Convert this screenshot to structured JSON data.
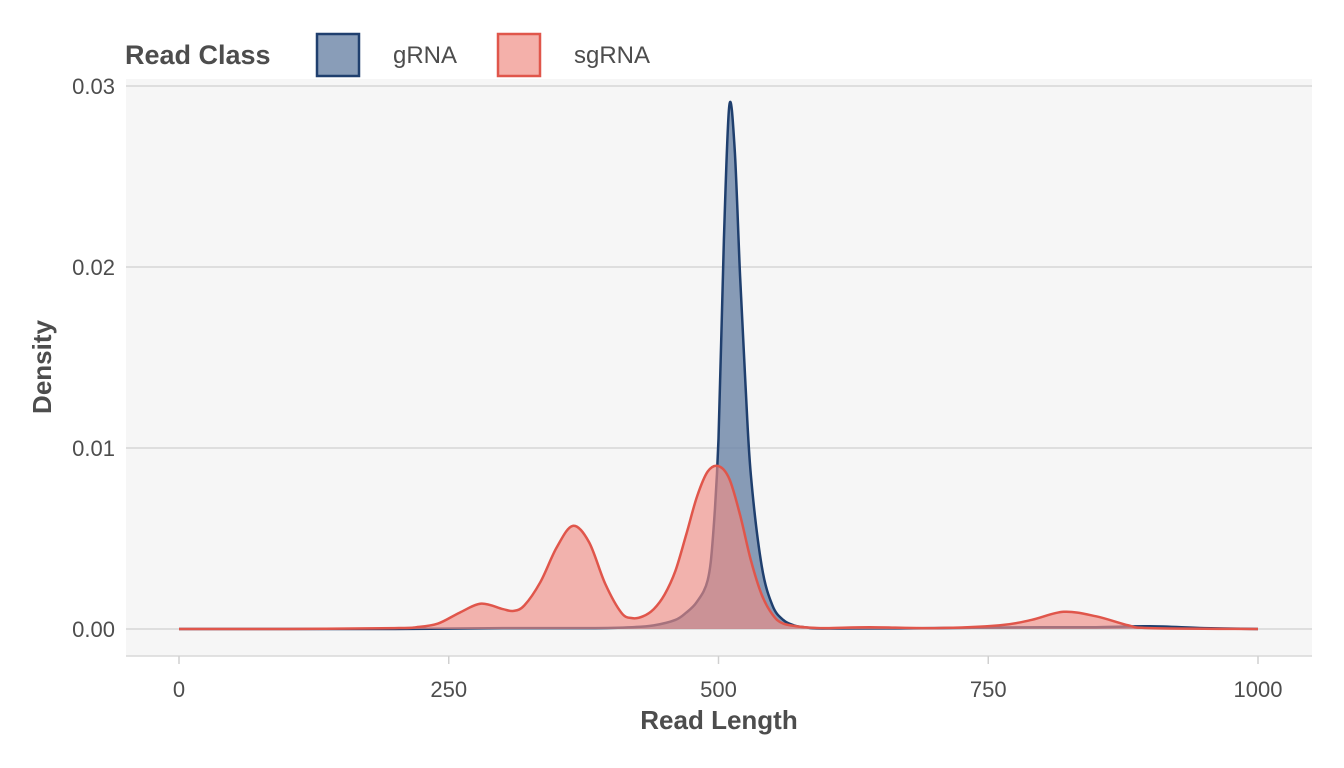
{
  "chart_data": {
    "type": "area",
    "xlabel": "Read Length",
    "ylabel": "Density",
    "xlim": [
      0,
      1000
    ],
    "ylim": [
      0,
      0.03
    ],
    "x_ticks": [
      0,
      250,
      500,
      750,
      1000
    ],
    "x_tick_labels": [
      "0",
      "250",
      "500",
      "750",
      "1000"
    ],
    "y_ticks": [
      0,
      0.01,
      0.02,
      0.03
    ],
    "y_tick_labels": [
      "0.00",
      "0.01",
      "0.02",
      "0.03"
    ],
    "grid": true,
    "legend": {
      "title": "Read Class",
      "position": "top-left",
      "entries": [
        "gRNA",
        "sgRNA"
      ]
    },
    "series": [
      {
        "name": "gRNA",
        "color": "#1f3f6e",
        "fill": "#6c85a6",
        "x": [
          0,
          100,
          200,
          300,
          380,
          420,
          440,
          460,
          470,
          480,
          490,
          495,
          500,
          505,
          510,
          515,
          520,
          525,
          530,
          540,
          550,
          560,
          570,
          580,
          600,
          700,
          800,
          850,
          900,
          950,
          1000
        ],
        "y": [
          0,
          0,
          0,
          5e-05,
          5e-05,
          0.0001,
          0.0002,
          0.0005,
          0.0009,
          0.0015,
          0.0027,
          0.0052,
          0.0105,
          0.0215,
          0.0289,
          0.0265,
          0.0195,
          0.0135,
          0.0085,
          0.0035,
          0.0013,
          0.0005,
          0.0002,
          0.0001,
          3e-05,
          5e-05,
          0.0001,
          0.0001,
          0.00015,
          5e-05,
          0
        ]
      },
      {
        "name": "sgRNA",
        "color": "#e0564b",
        "fill": "#f08e86",
        "x": [
          0,
          100,
          200,
          220,
          240,
          260,
          280,
          300,
          310,
          320,
          335,
          350,
          365,
          380,
          395,
          410,
          420,
          430,
          440,
          450,
          460,
          470,
          480,
          490,
          500,
          510,
          520,
          530,
          540,
          550,
          560,
          580,
          600,
          640,
          700,
          760,
          790,
          820,
          850,
          880,
          900,
          1000
        ],
        "y": [
          0,
          0,
          5e-05,
          0.0001,
          0.0003,
          0.0009,
          0.0014,
          0.0011,
          0.001,
          0.0013,
          0.0026,
          0.0045,
          0.0057,
          0.0048,
          0.0025,
          0.0009,
          0.0006,
          0.0007,
          0.0011,
          0.0019,
          0.0032,
          0.0052,
          0.0073,
          0.0087,
          0.009,
          0.0083,
          0.0063,
          0.0038,
          0.0019,
          0.0008,
          0.0003,
          0.0001,
          5e-05,
          0.0001,
          5e-05,
          0.0002,
          0.0005,
          0.00095,
          0.0007,
          0.0002,
          5e-05,
          0
        ]
      }
    ]
  }
}
